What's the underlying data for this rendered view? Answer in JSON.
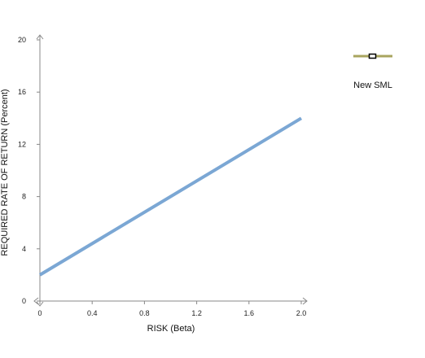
{
  "chart_data": {
    "type": "line",
    "xlabel": "RISK (Beta)",
    "ylabel": "REQUIRED RATE OF RETURN (Percent)",
    "x_ticks": [
      "0",
      "0.4",
      "0.8",
      "1.2",
      "1.6",
      "2.0"
    ],
    "y_ticks": [
      "0",
      "4",
      "8",
      "12",
      "16",
      "20"
    ],
    "xlim": [
      0,
      2.0
    ],
    "ylim": [
      0,
      20
    ],
    "grid": false,
    "legend_position": "top-right",
    "series": [
      {
        "name": "New SML",
        "color": "#7ba7d4",
        "legend_color": "#a9a55f",
        "x": [
          0,
          2.0
        ],
        "y": [
          2,
          14
        ]
      }
    ]
  },
  "colors": {
    "axis": "#888888",
    "line": "#7ba7d4",
    "legend_line": "#a9a55f"
  }
}
